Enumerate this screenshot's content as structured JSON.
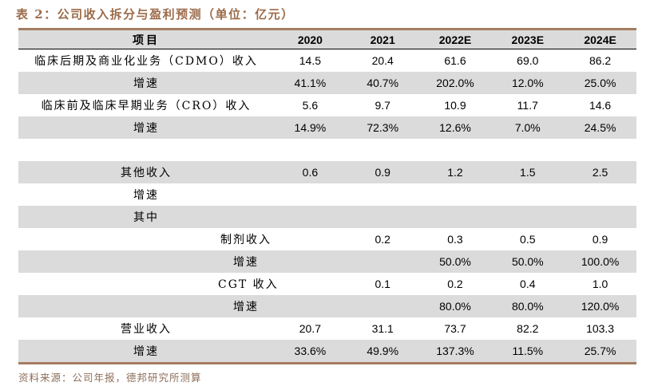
{
  "title": "表 2：公司收入拆分与盈利预测（单位：亿元）",
  "colors": {
    "accent_brown": "#9C6B4A",
    "border_brown": "#A57D60",
    "row_gray": "#DBDBDB",
    "text": "#000000"
  },
  "table": {
    "columns": [
      "项目",
      "2020",
      "2021",
      "2022E",
      "2023E",
      "2024E"
    ],
    "rows": [
      {
        "label": "临床后期及商业化业务（CDMO）收入",
        "values": [
          "14.5",
          "20.4",
          "61.6",
          "69.0",
          "86.2"
        ]
      },
      {
        "label": "增速",
        "values": [
          "41.1%",
          "40.7%",
          "202.0%",
          "12.0%",
          "25.0%"
        ]
      },
      {
        "label": "临床前及临床早期业务（CRO）收入",
        "values": [
          "5.6",
          "9.7",
          "10.9",
          "11.7",
          "14.6"
        ]
      },
      {
        "label": "增速",
        "values": [
          "14.9%",
          "72.3%",
          "12.6%",
          "7.0%",
          "24.5%"
        ]
      },
      {
        "label": "",
        "values": [
          "",
          "",
          "",
          "",
          ""
        ]
      },
      {
        "label": "其他收入",
        "values": [
          "0.6",
          "0.9",
          "1.2",
          "1.5",
          "2.5"
        ]
      },
      {
        "label": "增速",
        "values": [
          "",
          "",
          "",
          "",
          ""
        ]
      },
      {
        "label": "其中",
        "values": [
          "",
          "",
          "",
          "",
          ""
        ]
      },
      {
        "label": "制剂收入",
        "values": [
          "",
          "0.2",
          "0.3",
          "0.5",
          "0.9"
        ]
      },
      {
        "label": "增速",
        "values": [
          "",
          "",
          "50.0%",
          "50.0%",
          "100.0%"
        ]
      },
      {
        "label": "CGT 收入",
        "values": [
          "",
          "0.1",
          "0.2",
          "0.4",
          "1.0"
        ]
      },
      {
        "label": "增速",
        "values": [
          "",
          "",
          "80.0%",
          "80.0%",
          "120.0%"
        ]
      },
      {
        "label": "营业收入",
        "values": [
          "20.7",
          "31.1",
          "73.7",
          "82.2",
          "103.3"
        ]
      },
      {
        "label": "增速",
        "values": [
          "33.6%",
          "49.9%",
          "137.3%",
          "11.5%",
          "25.7%"
        ]
      }
    ]
  },
  "footer": {
    "source_label": "资料来源：公司年报，德邦研究所测算"
  }
}
